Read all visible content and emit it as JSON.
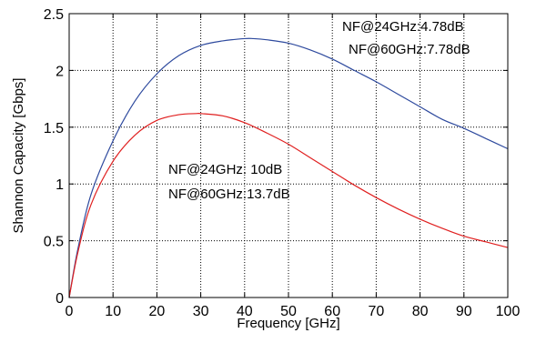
{
  "chart_data": {
    "type": "line",
    "xlabel": "Frequency [GHz]",
    "ylabel": "Shannon Capacity [Gbps]",
    "xlim": [
      0,
      100
    ],
    "ylim": [
      0,
      2.5
    ],
    "grid": true,
    "x_ticks": [
      "0",
      "10",
      "20",
      "30",
      "40",
      "50",
      "60",
      "70",
      "80",
      "90",
      "100"
    ],
    "y_ticks": [
      "0",
      "0.5",
      "1",
      "1.5",
      "2",
      "2.5"
    ],
    "annotations": [
      {
        "text": "NF@24GHz:4.78dB",
        "color": "#2e4a9e"
      },
      {
        "text": "NF@60GHz:7.78dB",
        "color": "#2e4a9e"
      },
      {
        "text": "NF@24GHz: 10dB",
        "color": "#e02020"
      },
      {
        "text": "NF@60GHz:13.7dB",
        "color": "#e02020"
      }
    ],
    "series": [
      {
        "color": "#2e4a9e",
        "x": [
          0,
          2,
          5,
          10,
          15,
          20,
          25,
          30,
          35,
          40,
          42,
          45,
          50,
          55,
          60,
          65,
          70,
          75,
          80,
          85,
          90,
          95,
          100
        ],
        "y": [
          0,
          0.43,
          0.91,
          1.38,
          1.73,
          1.97,
          2.13,
          2.22,
          2.26,
          2.28,
          2.28,
          2.27,
          2.24,
          2.18,
          2.1,
          2.0,
          1.9,
          1.79,
          1.68,
          1.57,
          1.49,
          1.4,
          1.31
        ]
      },
      {
        "color": "#e02020",
        "x": [
          0,
          2,
          5,
          10,
          15,
          20,
          25,
          29,
          30,
          35,
          40,
          45,
          50,
          55,
          60,
          65,
          70,
          75,
          80,
          85,
          90,
          95,
          100
        ],
        "y": [
          0,
          0.4,
          0.82,
          1.2,
          1.43,
          1.56,
          1.61,
          1.62,
          1.62,
          1.6,
          1.54,
          1.45,
          1.35,
          1.23,
          1.11,
          0.99,
          0.88,
          0.78,
          0.69,
          0.61,
          0.54,
          0.49,
          0.44
        ]
      }
    ]
  }
}
